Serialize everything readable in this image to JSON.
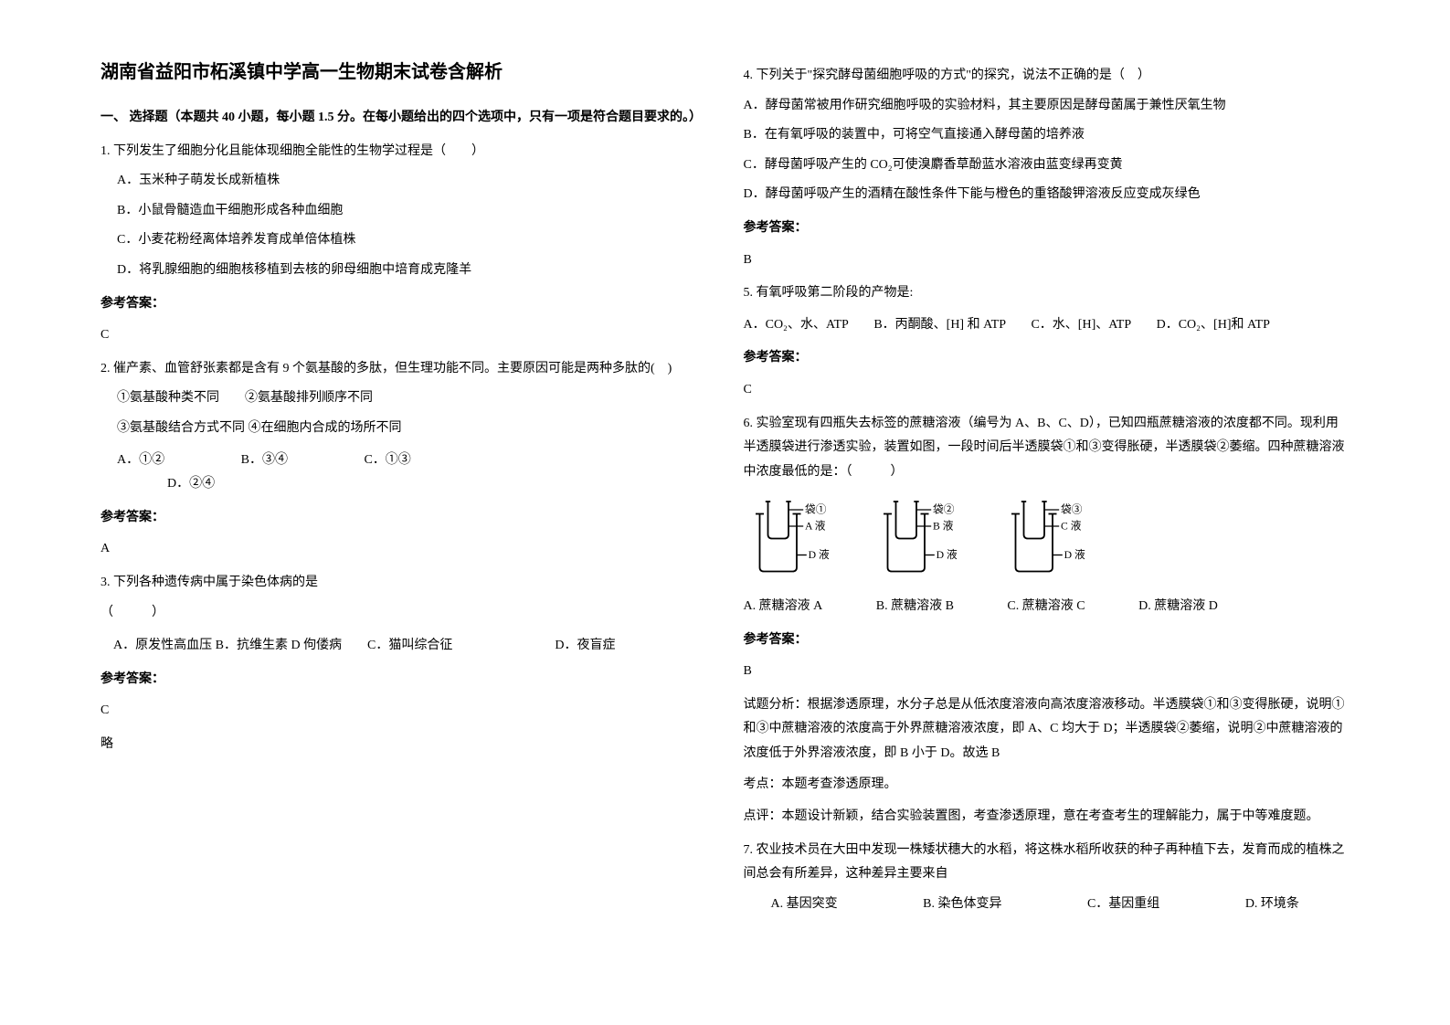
{
  "title": "湖南省益阳市柘溪镇中学高一生物期末试卷含解析",
  "section1": "一、 选择题（本题共 40 小题，每小题 1.5 分。在每小题给出的四个选项中，只有一项是符合题目要求的。）",
  "q1": {
    "stem": "1. 下列发生了细胞分化且能体现细胞全能性的生物学过程是（　　）",
    "A": "A．玉米种子萌发长成新植株",
    "B": "B．小鼠骨髓造血干细胞形成各种血细胞",
    "C": "C．小麦花粉经离体培养发育成单倍体植株",
    "D": "D．将乳腺细胞的细胞核移植到去核的卵母细胞中培育成克隆羊",
    "ans_label": "参考答案：",
    "ans": "C"
  },
  "q2": {
    "stem": "2. 催产素、血管舒张素都是含有 9 个氨基酸的多肽，但生理功能不同。主要原因可能是两种多肽的(　)",
    "l1": "①氨基酸种类不同　　②氨基酸排列顺序不同",
    "l2": "③氨基酸结合方式不同 ④在细胞内合成的场所不同",
    "A": "A．①②",
    "B": "B．③④",
    "C": "C．①③",
    "D": "D．②④",
    "ans_label": "参考答案：",
    "ans": "A"
  },
  "q3": {
    "stem": "3. 下列各种遗传病中属于染色体病的是",
    "brack": "（　　　）",
    "opts": "　A．原发性高血压  B．抗维生素 D 佝偻病　　C．猫叫综合征　　　　　　　　D．夜盲症",
    "ans_label": "参考答案：",
    "ans": "C",
    "note": "略"
  },
  "q4": {
    "stem": "4. 下列关于\"探究酵母菌细胞呼吸的方式\"的探究，说法不正确的是（　）",
    "A": "A．酵母菌常被用作研究细胞呼吸的实验材料，其主要原因是酵母菌属于兼性厌氧生物",
    "B": "B．在有氧呼吸的装置中，可将空气直接通入酵母菌的培养液",
    "C": "C．酵母菌呼吸产生的 CO₂可使溴麝香草酚蓝水溶液由蓝变绿再变黄",
    "D": "D．酵母菌呼吸产生的酒精在酸性条件下能与橙色的重铬酸钾溶液反应变成灰绿色",
    "ans_label": "参考答案：",
    "ans": "B"
  },
  "q5": {
    "stem": "5. 有氧呼吸第二阶段的产物是:",
    "opts": "A．CO₂、水、ATP　　B．丙酮酸、[H] 和 ATP　　C．水、[H]、ATP　　D．CO₂、[H]和 ATP",
    "ans_label": "参考答案：",
    "ans": "C"
  },
  "q6": {
    "stem": "6. 实验室现有四瓶失去标签的蔗糖溶液（编号为 A、B、C、D），已知四瓶蔗糖溶液的浓度都不同。现利用半透膜袋进行渗透实验，装置如图，一段时间后半透膜袋①和③变得胀硬，半透膜袋②萎缩。四种蔗糖溶液中浓度最低的是：（　　　）",
    "diagram": {
      "units": [
        {
          "bag": "袋①",
          "inner": "A 液",
          "outer": "D 液"
        },
        {
          "bag": "袋②",
          "inner": "B 液",
          "outer": "D 液"
        },
        {
          "bag": "袋③",
          "inner": "C 液",
          "outer": "D 液"
        }
      ]
    },
    "A": "A.  蔗糖溶液 A",
    "B": "B.  蔗糖溶液 B",
    "C": "C.  蔗糖溶液 C",
    "D": "D.  蔗糖溶液 D",
    "ans_label": "参考答案：",
    "ans": "B",
    "analysis1": "试题分析：根据渗透原理，水分子总是从低浓度溶液向高浓度溶液移动。半透膜袋①和③变得胀硬，说明①和③中蔗糖溶液的浓度高于外界蔗糖溶液浓度，即 A、C 均大于 D；半透膜袋②萎缩，说明②中蔗糖溶液的浓度低于外界溶液浓度，即 B 小于 D。故选 B",
    "analysis2": "考点：本题考查渗透原理。",
    "analysis3": "点评：本题设计新颖，结合实验装置图，考查渗透原理，意在考查考生的理解能力，属于中等难度题。"
  },
  "q7": {
    "stem": "7. 农业技术员在大田中发现一株矮状穗大的水稻，将这株水稻所收获的种子再种植下去，发育而成的植株之间总会有所差异，这种差异主要来自",
    "A": "A.  基因突变",
    "B": "B. 染色体变异",
    "C": "C．基因重组",
    "D": "D. 环境条"
  }
}
